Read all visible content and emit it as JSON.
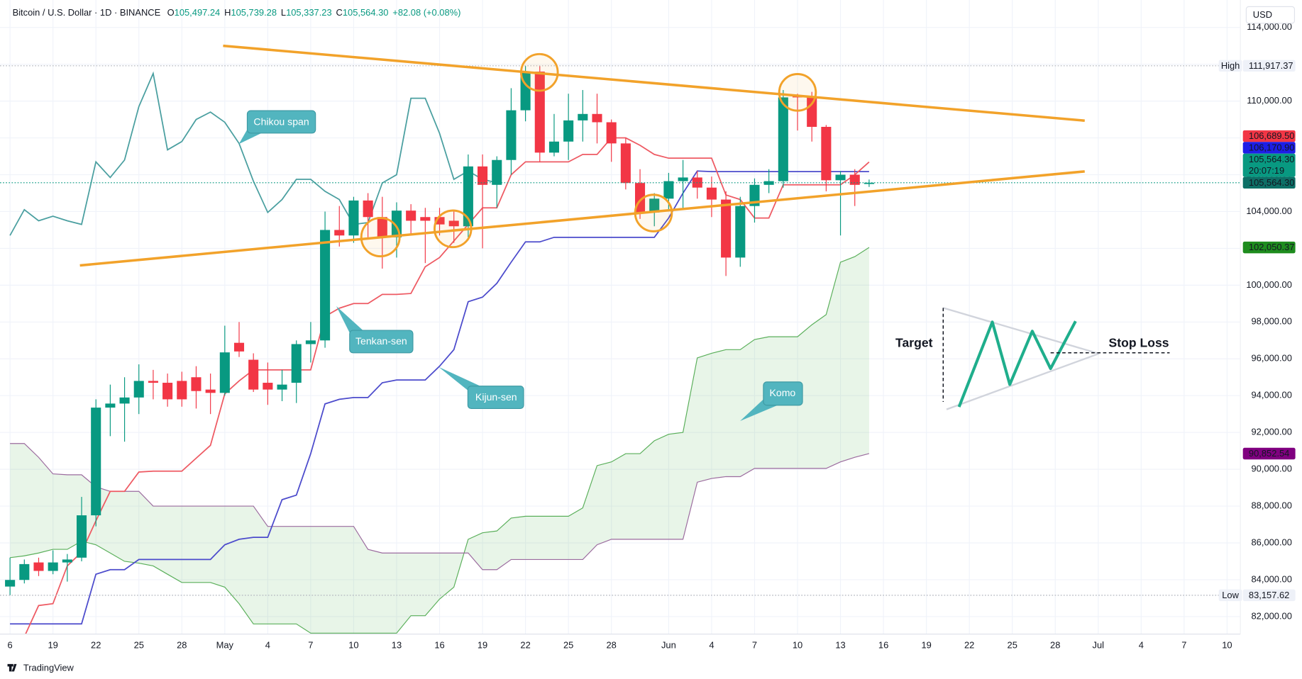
{
  "chart_data": {
    "type": "candlestick",
    "title": "Bitcoin / U.S. Dollar · 1D · BINANCE",
    "ohlc_legend": [
      {
        "key": "O",
        "text": "105,497.24"
      },
      {
        "key": "H",
        "text": "105,739.28"
      },
      {
        "key": "L",
        "text": "105,337.23"
      },
      {
        "key": "C",
        "text": "105,564.30"
      }
    ],
    "change": "+82.08 (+0.08%)",
    "legend_value_color": "#089981",
    "currency": "USD",
    "logo": "TradingView",
    "up_color": "#089981",
    "down_color": "#f23645",
    "grid": true,
    "x": [
      0,
      1,
      2,
      3,
      4,
      5,
      6,
      7,
      8,
      9,
      10,
      11,
      12,
      13,
      14,
      15,
      16,
      17,
      18,
      19,
      20,
      21,
      22,
      23,
      24,
      25,
      26,
      27,
      28,
      29,
      30,
      31,
      32,
      33,
      34,
      35,
      36,
      37,
      38,
      39,
      40,
      41,
      42,
      43,
      44,
      45,
      46,
      47,
      48,
      49,
      50,
      51,
      52,
      53,
      54,
      55,
      56,
      57,
      58,
      59,
      60
    ],
    "open": [
      83630,
      83990,
      84940,
      84480,
      84940,
      85200,
      87500,
      93350,
      93570,
      93900,
      94800,
      94700,
      94800,
      95000,
      94330,
      94150,
      96870,
      95950,
      94700,
      94330,
      94700,
      96800,
      97000,
      103000,
      102700,
      104600,
      103700,
      102600,
      104050,
      103700,
      103700,
      103500,
      103200,
      106450,
      105450,
      106800,
      109500,
      111600,
      107200,
      107800,
      108950,
      109300,
      108850,
      107700,
      105550,
      103950,
      104700,
      105650,
      105850,
      105300,
      104650,
      101500,
      104300,
      105450,
      105650,
      110250,
      110200,
      108600,
      105700,
      106000,
      105497.24
    ],
    "high": [
      85200,
      85100,
      85200,
      85600,
      85400,
      88500,
      93800,
      94600,
      95000,
      95700,
      95400,
      95200,
      95300,
      95600,
      95200,
      97800,
      98000,
      96300,
      95800,
      95400,
      97000,
      98000,
      104000,
      104300,
      104800,
      105000,
      104800,
      104500,
      104400,
      104200,
      104200,
      104000,
      107100,
      107100,
      107000,
      110700,
      111917.37,
      111900,
      109300,
      110400,
      110600,
      110400,
      109000,
      108000,
      106300,
      105000,
      106100,
      106800,
      106200,
      105900,
      105100,
      104800,
      105800,
      106300,
      110600,
      110400,
      110500,
      108700,
      106200,
      106300,
      105739.28
    ],
    "low": [
      83157.62,
      83800,
      84200,
      84300,
      83900,
      85000,
      86900,
      91800,
      91500,
      93000,
      93800,
      93400,
      93400,
      93300,
      93000,
      94000,
      96100,
      94200,
      93500,
      93700,
      93600,
      95800,
      96600,
      102100,
      102300,
      102600,
      100900,
      101500,
      102800,
      101200,
      102700,
      102300,
      102600,
      102000,
      104200,
      106000,
      108900,
      106700,
      107000,
      106800,
      107800,
      107700,
      106700,
      105200,
      103600,
      103200,
      104000,
      104100,
      104700,
      103700,
      100500,
      101000,
      103400,
      105000,
      105300,
      108400,
      107800,
      105100,
      102700,
      104300,
      105337.23
    ],
    "close": [
      83990,
      84850,
      84480,
      84940,
      85100,
      87500,
      93350,
      93570,
      93900,
      94800,
      94700,
      93800,
      93800,
      94250,
      94150,
      96350,
      96400,
      94330,
      94330,
      94600,
      96800,
      97000,
      103000,
      102700,
      104600,
      103700,
      102600,
      104050,
      103500,
      103500,
      103300,
      103200,
      106450,
      105450,
      106800,
      109500,
      111600,
      107200,
      107800,
      108950,
      109300,
      108850,
      107700,
      105550,
      103950,
      104700,
      105650,
      105850,
      105300,
      104650,
      101500,
      104300,
      105450,
      105650,
      110200,
      110200,
      108600,
      105700,
      106000,
      105450,
      105564.3
    ],
    "series": [
      {
        "name": "Tenkan-sen",
        "color": "#ee5a63",
        "values": [
          null,
          80900,
          82600,
          82700,
          84750,
          85500,
          87200,
          88800,
          88800,
          89850,
          89900,
          89900,
          89900,
          90600,
          91300,
          94100,
          94800,
          95400,
          95400,
          95400,
          95400,
          95400,
          98300,
          98750,
          99000,
          99000,
          99500,
          99500,
          99550,
          101000,
          101500,
          102400,
          103300,
          104200,
          104200,
          106000,
          106700,
          106700,
          106700,
          106700,
          107100,
          107100,
          108000,
          108000,
          107600,
          107100,
          106900,
          106900,
          106900,
          106900,
          104900,
          104650,
          103650,
          103650,
          105450,
          105450,
          105450,
          105450,
          105450,
          106000,
          106689.5
        ]
      },
      {
        "name": "Kijun-sen",
        "color": "#4c4bcc",
        "values": [
          81600,
          81600,
          81600,
          81600,
          81600,
          81600,
          84300,
          84550,
          84550,
          85100,
          85100,
          85100,
          85100,
          85100,
          85100,
          85900,
          86200,
          86300,
          86300,
          88350,
          88600,
          90850,
          93550,
          93800,
          93900,
          93900,
          94700,
          94850,
          94850,
          94850,
          95600,
          96500,
          99100,
          99350,
          100100,
          101250,
          102350,
          102350,
          102600,
          102600,
          102600,
          102600,
          102600,
          102600,
          102600,
          102600,
          103650,
          105000,
          106200,
          106170.9,
          106170.9,
          106170.9,
          106170.9,
          106170.9,
          106170.9,
          106170.9,
          106170.9,
          106170.9,
          106170.9,
          106170.9,
          106170.9
        ]
      },
      {
        "name": "Chikou span",
        "color": "#4a9fa0",
        "values": [
          102700,
          104100,
          103500,
          103750,
          103500,
          103300,
          106700,
          105850,
          106800,
          109700,
          111500,
          107350,
          107800,
          109000,
          109400,
          108850,
          107700,
          105650,
          103950,
          104650,
          105750,
          105750,
          105100,
          104650,
          103300,
          103400,
          105550,
          106000,
          110150,
          110150,
          108250,
          105750,
          106200,
          105750,
          105564.3,
          null,
          null,
          null,
          null,
          null,
          null,
          null,
          null,
          null,
          null,
          null,
          null,
          null,
          null,
          null,
          null,
          null,
          null,
          null,
          null,
          null,
          null,
          null,
          null,
          null,
          null
        ]
      }
    ],
    "cloud": {
      "name": "Komo",
      "fill": "rgba(76,175,80,0.13)",
      "span_a": {
        "color": "#5aaf5a",
        "values": [
          85200,
          85300,
          85450,
          85650,
          85650,
          86100,
          85900,
          85450,
          85000,
          84900,
          84750,
          84300,
          83850,
          83850,
          83850,
          83600,
          82700,
          81600,
          81600,
          81600,
          81600,
          81100,
          81100,
          81100,
          81100,
          81100,
          81100,
          81100,
          82050,
          82050,
          82950,
          83600,
          86200,
          86550,
          86650,
          87350,
          87450,
          87450,
          87450,
          87450,
          87900,
          90200,
          90400,
          90850,
          90850,
          91550,
          91900,
          92000,
          96050,
          96300,
          96500,
          96500,
          97050,
          97200,
          97200,
          97200,
          97850,
          98400,
          101250,
          101550,
          102050.37
        ]
      },
      "span_b": {
        "color": "#9b6b9e",
        "values": [
          91400,
          91400,
          90650,
          89750,
          89700,
          89700,
          89050,
          88800,
          88800,
          88800,
          88000,
          88000,
          88000,
          88000,
          88000,
          88000,
          88000,
          88000,
          86900,
          86900,
          86900,
          86900,
          86900,
          86900,
          86900,
          85650,
          85450,
          85450,
          85450,
          85450,
          85450,
          85450,
          85450,
          84550,
          84550,
          85100,
          85100,
          85100,
          85100,
          85100,
          85100,
          85900,
          86200,
          86200,
          86200,
          86200,
          86200,
          86200,
          89300,
          89500,
          89600,
          89600,
          90050,
          90050,
          90050,
          90050,
          90050,
          90050,
          90400,
          90650,
          90852.54
        ]
      }
    },
    "xlim": [
      -0.7,
      85.93
    ],
    "xticks": [
      {
        "value": 0,
        "label": "6"
      },
      {
        "value": 3,
        "label": "19"
      },
      {
        "value": 6,
        "label": "22"
      },
      {
        "value": 9,
        "label": "25"
      },
      {
        "value": 12,
        "label": "28"
      },
      {
        "value": 15,
        "label": "May"
      },
      {
        "value": 18,
        "label": "4"
      },
      {
        "value": 21,
        "label": "7"
      },
      {
        "value": 24,
        "label": "10"
      },
      {
        "value": 27,
        "label": "13"
      },
      {
        "value": 30,
        "label": "16"
      },
      {
        "value": 33,
        "label": "19"
      },
      {
        "value": 36,
        "label": "22"
      },
      {
        "value": 39,
        "label": "25"
      },
      {
        "value": 42,
        "label": "28"
      },
      {
        "value": 46,
        "label": "Jun"
      },
      {
        "value": 49,
        "label": "4"
      },
      {
        "value": 52,
        "label": "7"
      },
      {
        "value": 55,
        "label": "10"
      },
      {
        "value": 58,
        "label": "13"
      },
      {
        "value": 61,
        "label": "16"
      },
      {
        "value": 64,
        "label": "19"
      },
      {
        "value": 67,
        "label": "22"
      },
      {
        "value": 70,
        "label": "25"
      },
      {
        "value": 73,
        "label": "28"
      },
      {
        "value": 76,
        "label": "Jul"
      },
      {
        "value": 79,
        "label": "4"
      },
      {
        "value": 82,
        "label": "7"
      },
      {
        "value": 85,
        "label": "10"
      }
    ],
    "ylim": [
      81050,
      115490
    ],
    "yticks": [
      {
        "value": 82000,
        "label": "82,000.00"
      },
      {
        "value": 84000,
        "label": "84,000.00"
      },
      {
        "value": 86000,
        "label": "86,000.00"
      },
      {
        "value": 88000,
        "label": "88,000.00"
      },
      {
        "value": 90000,
        "label": "90,000.00"
      },
      {
        "value": 92000,
        "label": "92,000.00"
      },
      {
        "value": 94000,
        "label": "94,000.00"
      },
      {
        "value": 96000,
        "label": "96,000.00"
      },
      {
        "value": 98000,
        "label": "98,000.00"
      },
      {
        "value": 100000,
        "label": "100,000.00"
      },
      {
        "value": 102000,
        "label": "102,000.00"
      },
      {
        "value": 104000,
        "label": "104,000.00"
      },
      {
        "value": 106000,
        "label": "106,000.00"
      },
      {
        "value": 108000,
        "label": "108,000.00"
      },
      {
        "value": 110000,
        "label": "110,000.00"
      },
      {
        "value": 112000,
        "label": "112,000.00"
      },
      {
        "value": 114000,
        "label": "114,000.00"
      }
    ],
    "price_tags": [
      {
        "caption": "High",
        "value": 111917.37,
        "label": "111,917.37",
        "color": "#eef1f8",
        "text_color": "#131722",
        "line_color": "#b2b5be"
      },
      {
        "value": 106689.5,
        "label": "106,689.50",
        "color": "#f23645",
        "text_color": "#ffffff"
      },
      {
        "value": 106170.9,
        "label": "106,170.90",
        "color": "#1e1ee6",
        "text_color": "#ffffff"
      },
      {
        "value": 105564.3,
        "label": "105,564.30",
        "sub": "20:07:19",
        "color": "#089981",
        "text_color": "#ffffff"
      },
      {
        "value": 105564.3,
        "label": "105,564.30",
        "color": "#0d6f66",
        "text_color": "#ffffff",
        "line_color": "#089981"
      },
      {
        "value": 102050.37,
        "label": "102,050.37",
        "color": "#1e8c1e",
        "text_color": "#ffffff"
      },
      {
        "value": 90852.54,
        "label": "90,852.54",
        "color": "#800080",
        "text_color": "#ffffff"
      },
      {
        "caption": "Low",
        "value": 83157.62,
        "label": "83,157.62",
        "color": "#eef1f8",
        "text_color": "#131722",
        "line_color": "#b2b5be"
      }
    ],
    "annotations": [
      "Target",
      "Stop Loss"
    ]
  }
}
